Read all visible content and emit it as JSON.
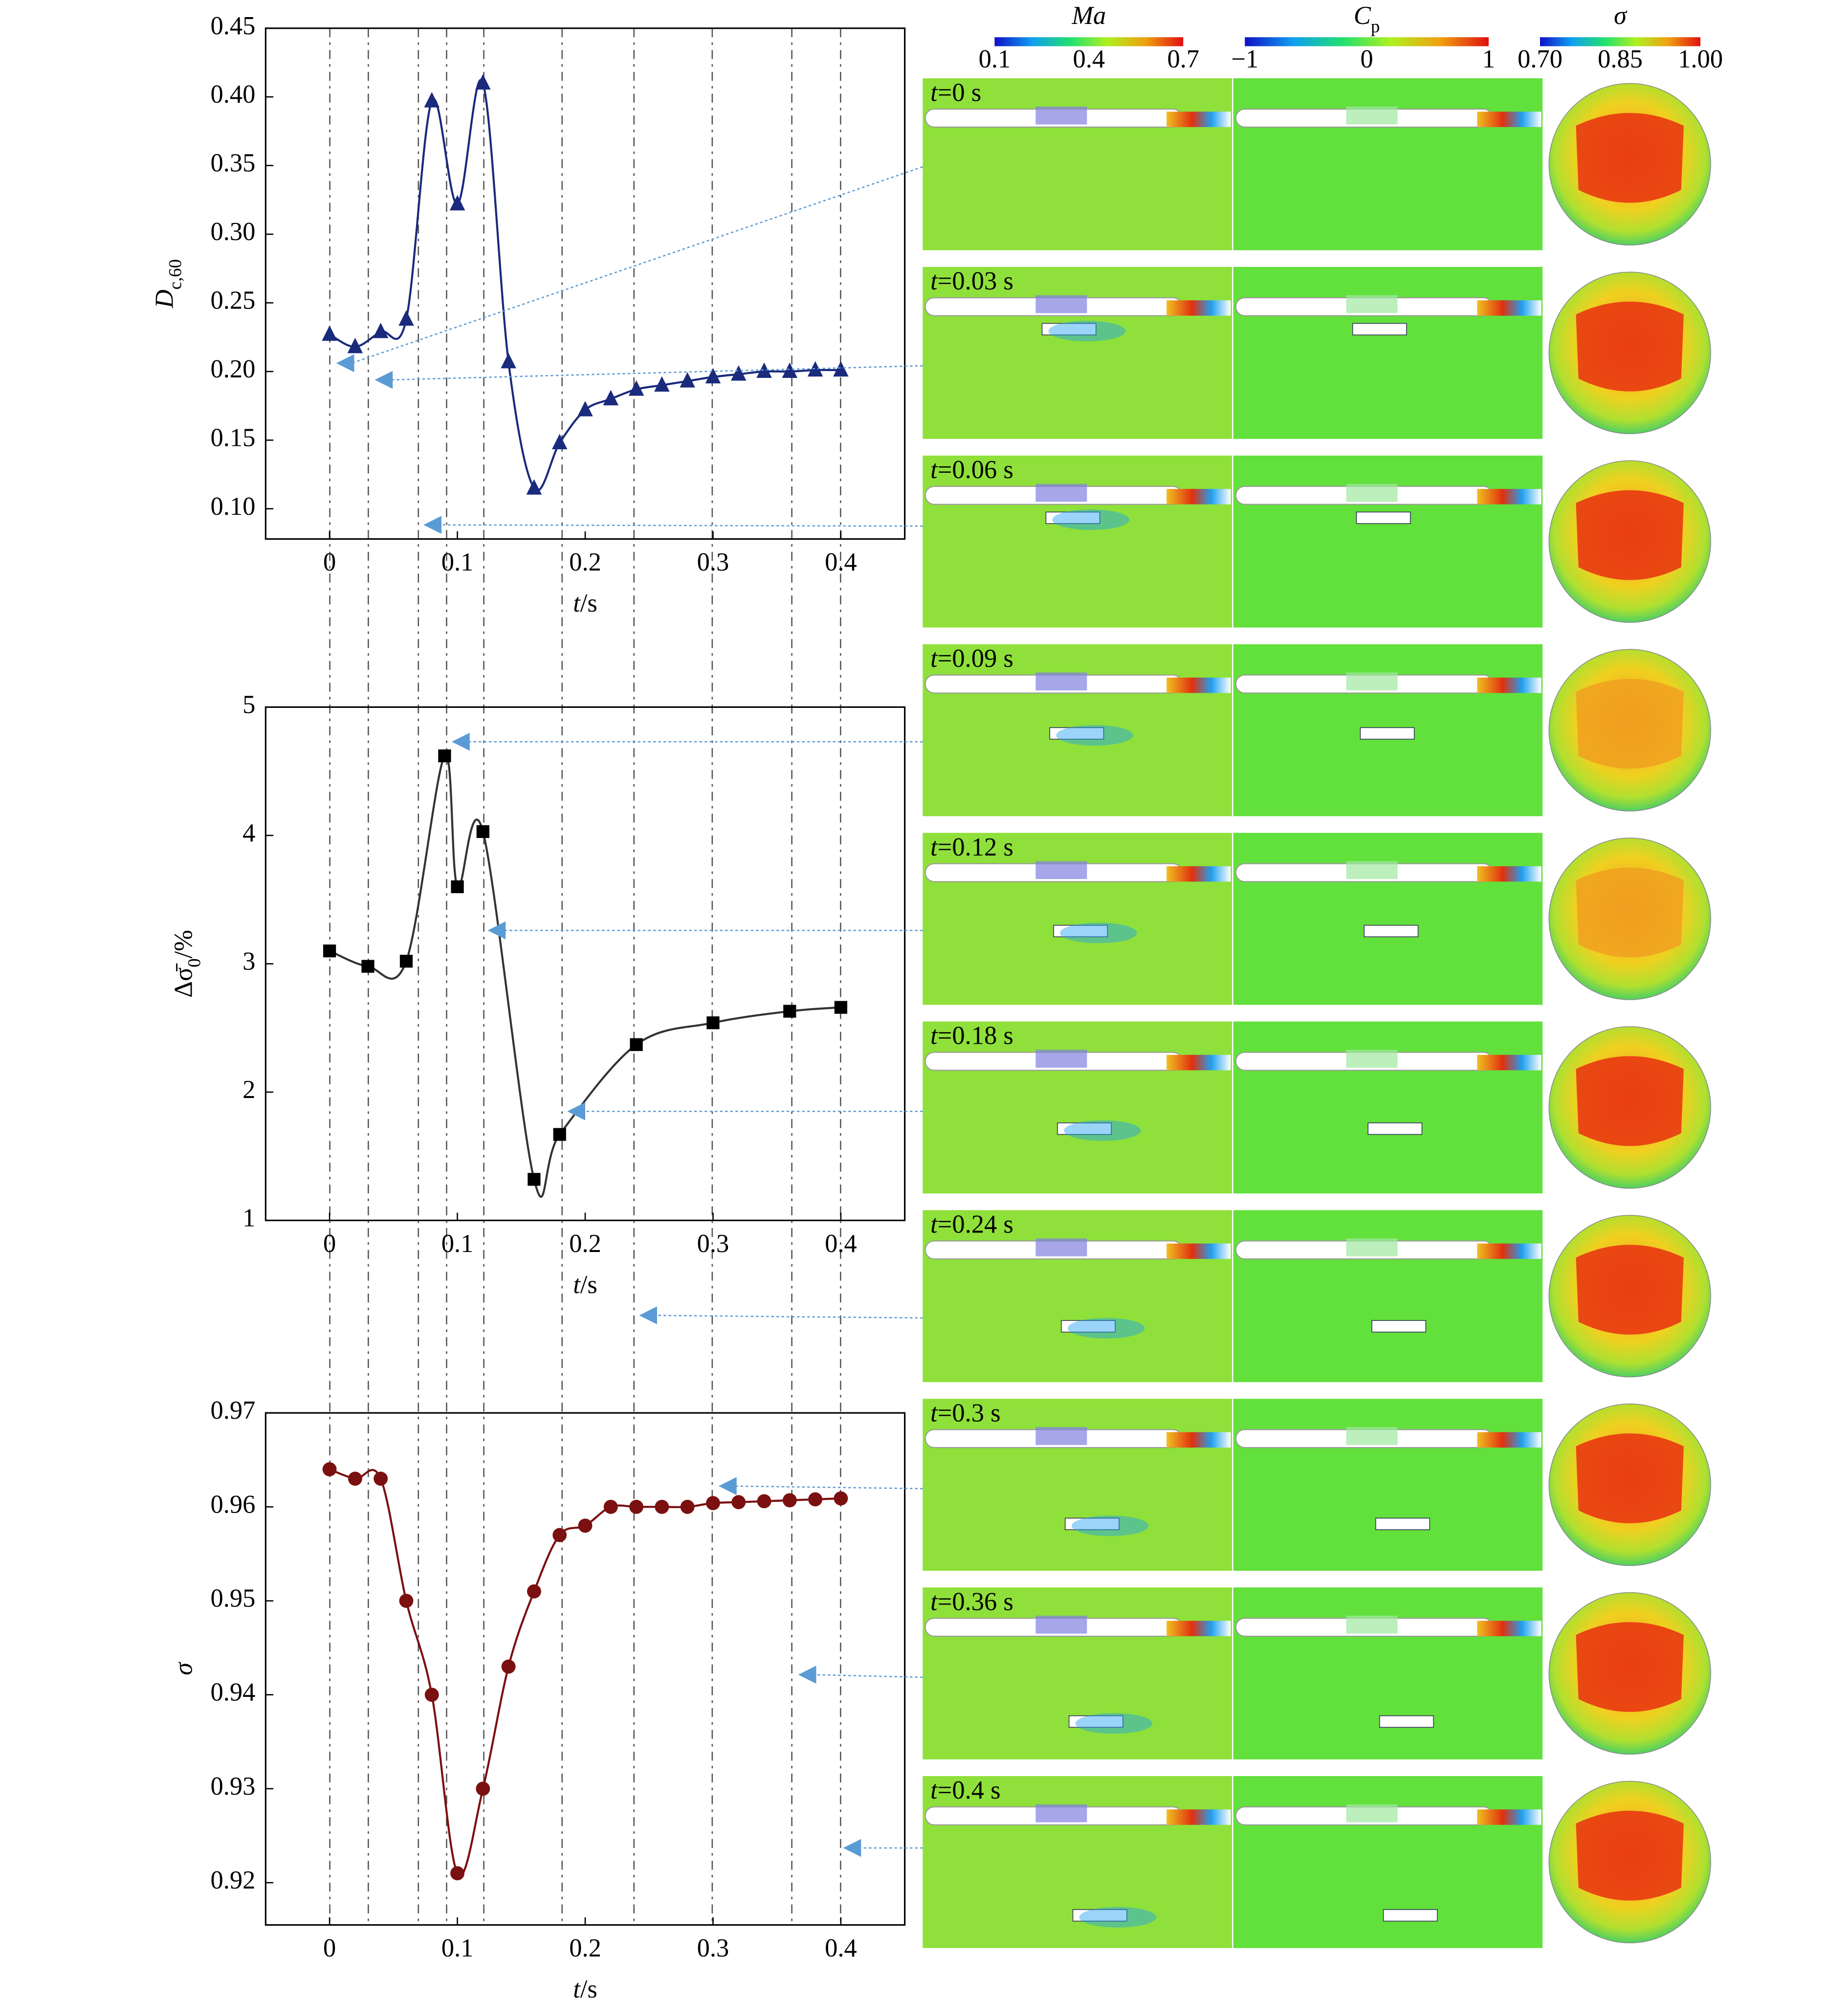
{
  "chart_data": [
    {
      "type": "line",
      "ylabel": [
        {
          "text": "D",
          "italic": true
        },
        {
          "text": "c,60",
          "sub": true
        }
      ],
      "xlabel": [
        {
          "text": "t",
          "italic": true
        },
        {
          "text": "/s"
        }
      ],
      "x": [
        0,
        0.02,
        0.04,
        0.06,
        0.08,
        0.1,
        0.12,
        0.14,
        0.16,
        0.18,
        0.2,
        0.22,
        0.24,
        0.26,
        0.28,
        0.3,
        0.32,
        0.34,
        0.36,
        0.38,
        0.4
      ],
      "series": [
        {
          "color": "#1a2a7c",
          "marker": "triangle",
          "values": [
            0.227,
            0.218,
            0.229,
            0.238,
            0.397,
            0.322,
            0.41,
            0.207,
            0.115,
            0.148,
            0.172,
            0.18,
            0.187,
            0.19,
            0.193,
            0.196,
            0.198,
            0.2,
            0.2,
            0.201,
            0.201
          ]
        }
      ],
      "xlim": [
        -0.05,
        0.45
      ],
      "ylim": [
        0.078,
        0.45
      ],
      "xticks": [
        0,
        0.1,
        0.2,
        0.3,
        0.4
      ],
      "yticks": [
        {
          "value": 0.1,
          "label": "0.10"
        },
        0.15,
        {
          "value": 0.2,
          "label": "0.20"
        },
        0.25,
        {
          "value": 0.3,
          "label": "0.30"
        },
        0.35,
        {
          "value": 0.4,
          "label": "0.40"
        },
        0.45
      ]
    },
    {
      "type": "line",
      "ylabel": [
        {
          "text": "Δσ̄"
        },
        {
          "text": "0",
          "sub": true
        },
        {
          "text": "/%"
        }
      ],
      "xlabel": [
        {
          "text": "t",
          "italic": true
        },
        {
          "text": "/s"
        }
      ],
      "x": [
        0,
        0.03,
        0.06,
        0.09,
        0.1,
        0.12,
        0.16,
        0.18,
        0.24,
        0.3,
        0.36,
        0.4
      ],
      "series": [
        {
          "color": "#333333",
          "marker": "square",
          "values": [
            3.1,
            2.98,
            3.02,
            4.62,
            3.6,
            4.03,
            1.32,
            1.67,
            2.37,
            2.54,
            2.63,
            2.66
          ]
        }
      ],
      "xlim": [
        -0.05,
        0.45
      ],
      "ylim": [
        1,
        5
      ],
      "xticks": [
        0,
        0.1,
        0.2,
        0.3,
        0.4
      ],
      "yticks": [
        1,
        2,
        3,
        4,
        5
      ]
    },
    {
      "type": "line",
      "ylabel": [
        {
          "text": "σ",
          "italic": true
        }
      ],
      "xlabel": [
        {
          "text": "t",
          "italic": true
        },
        {
          "text": "/s"
        }
      ],
      "x": [
        0,
        0.02,
        0.04,
        0.06,
        0.08,
        0.1,
        0.12,
        0.14,
        0.16,
        0.18,
        0.2,
        0.22,
        0.24,
        0.26,
        0.28,
        0.3,
        0.32,
        0.34,
        0.36,
        0.38,
        0.4
      ],
      "series": [
        {
          "color": "#7b1010",
          "marker": "circle",
          "values": [
            0.964,
            0.963,
            0.963,
            0.95,
            0.94,
            0.921,
            0.93,
            0.943,
            0.951,
            0.957,
            0.958,
            0.96,
            0.96,
            0.96,
            0.96,
            0.9604,
            0.9605,
            0.9606,
            0.9607,
            0.9608,
            0.9609
          ]
        }
      ],
      "xlim": [
        -0.05,
        0.45
      ],
      "ylim": [
        0.9155,
        0.97
      ],
      "xticks": [
        0,
        0.1,
        0.2,
        0.3,
        0.4
      ],
      "yticks": [
        0.92,
        0.93,
        0.94,
        0.95,
        0.96,
        0.97
      ]
    }
  ],
  "contours": {
    "colorbars": [
      {
        "title": [
          {
            "text": "Ma",
            "italic": true
          }
        ],
        "ticks": [
          "0.1",
          "0.4",
          "0.7"
        ]
      },
      {
        "title": [
          {
            "text": "C",
            "italic": true
          },
          {
            "text": "p",
            "sub": true
          }
        ],
        "ticks": [
          "−1",
          "0",
          "1"
        ]
      },
      {
        "title": [
          {
            "text": "σ",
            "italic": true
          }
        ],
        "ticks": [
          "0.70",
          "0.85",
          "1.00"
        ]
      }
    ],
    "snapshots": [
      [
        {
          "text": "t",
          "italic": true
        },
        {
          "text": "=0 s"
        }
      ],
      [
        {
          "text": "t",
          "italic": true
        },
        {
          "text": "=0.03 s"
        }
      ],
      [
        {
          "text": "t",
          "italic": true
        },
        {
          "text": "=0.06 s"
        }
      ],
      [
        {
          "text": "t",
          "italic": true
        },
        {
          "text": "=0.09 s"
        }
      ],
      [
        {
          "text": "t",
          "italic": true
        },
        {
          "text": "=0.12 s"
        }
      ],
      [
        {
          "text": "t",
          "italic": true
        },
        {
          "text": "=0.18 s"
        }
      ],
      [
        {
          "text": "t",
          "italic": true
        },
        {
          "text": "=0.24 s"
        }
      ],
      [
        {
          "text": "t",
          "italic": true
        },
        {
          "text": "=0.3 s"
        }
      ],
      [
        {
          "text": "t",
          "italic": true
        },
        {
          "text": "=0.36 s"
        }
      ],
      [
        {
          "text": "t",
          "italic": true
        },
        {
          "text": "=0.4 s"
        }
      ]
    ]
  }
}
